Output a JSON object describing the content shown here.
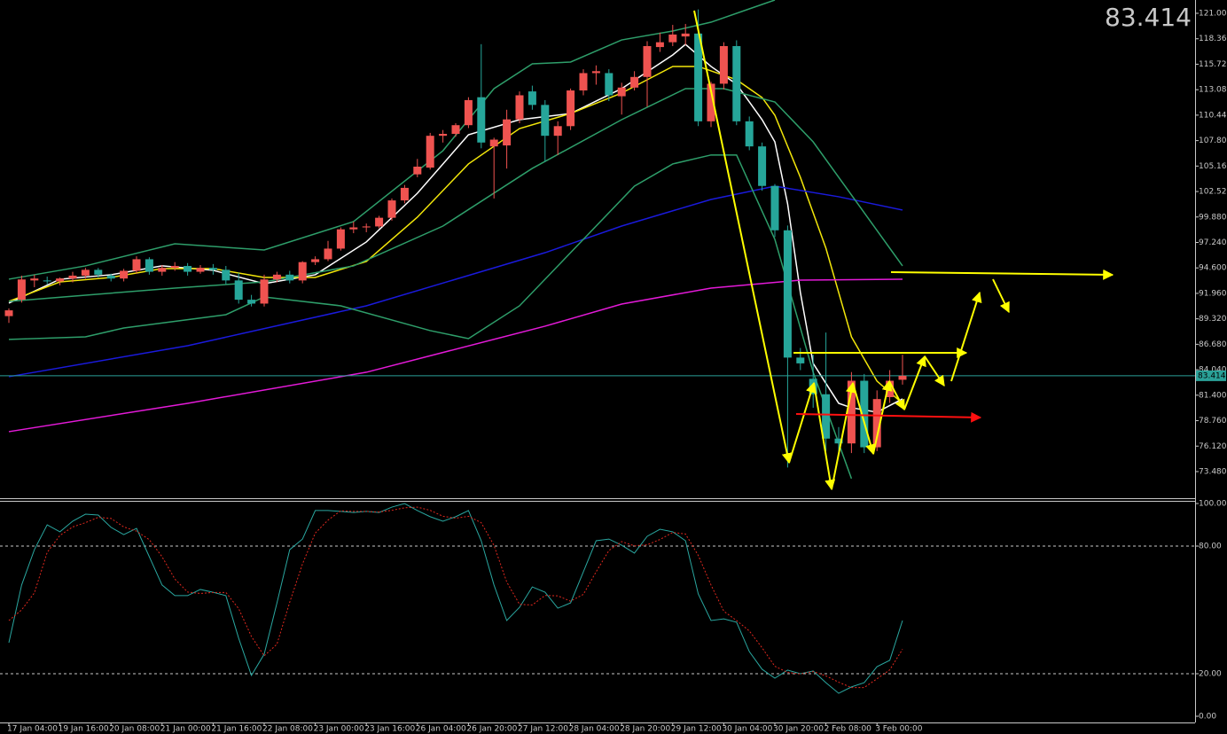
{
  "chart_data": [
    {
      "type": "candlestick",
      "categories": [
        "17 Jan 04:00",
        null,
        null,
        null,
        "19 Jan 16:00",
        null,
        null,
        null,
        "20 Jan 08:00",
        null,
        null,
        null,
        "21 Jan 00:00",
        null,
        null,
        null,
        "21 Jan 16:00",
        null,
        null,
        null,
        "22 Jan 08:00",
        null,
        null,
        null,
        "23 Jan 00:00",
        null,
        null,
        null,
        "23 Jan 16:00",
        null,
        null,
        null,
        "26 Jan 04:00",
        null,
        null,
        null,
        "26 Jan 20:00",
        null,
        null,
        null,
        "27 Jan 12:00",
        null,
        null,
        null,
        "28 Jan 04:00",
        null,
        null,
        null,
        "28 Jan 20:00",
        null,
        null,
        null,
        "29 Jan 12:00",
        null,
        null,
        null,
        "30 Jan 04:00",
        null,
        null,
        null,
        "30 Jan 20:00",
        null,
        null,
        null,
        "2 Feb 08:00",
        null,
        null,
        null,
        "3 Feb 00:00",
        null,
        null
      ],
      "open": [
        89.6,
        91.3,
        93.3,
        93.3,
        93.2,
        93.5,
        93.8,
        94.4,
        93.8,
        93.5,
        94.3,
        95.5,
        94.2,
        94.6,
        94.8,
        94.2,
        94.6,
        94.4,
        93.3,
        91.3,
        90.9,
        93.4,
        93.9,
        93.3,
        95.2,
        95.5,
        96.6,
        98.6,
        98.8,
        98.9,
        99.8,
        101.6,
        104.3,
        105.0,
        108.3,
        108.5,
        109.4,
        112.3,
        107.2,
        107.3,
        110.0,
        112.9,
        111.5,
        108.3,
        109.3,
        113.0,
        114.8,
        114.8,
        112.4,
        113.3,
        114.4,
        117.5,
        118.0,
        118.6,
        118.9,
        109.8,
        113.7,
        117.6,
        109.8,
        107.2,
        103.1,
        98.5,
        85.3,
        83.1,
        81.5,
        76.9,
        76.4,
        82.9,
        76.0,
        81.2,
        83.0
      ],
      "high": [
        90.4,
        93.8,
        93.9,
        93.7,
        93.6,
        94.2,
        94.6,
        94.6,
        94.0,
        94.5,
        95.8,
        95.7,
        94.9,
        95.2,
        95.1,
        94.9,
        95.0,
        94.8,
        94.1,
        91.8,
        93.9,
        94.2,
        94.3,
        95.3,
        95.8,
        97.4,
        98.8,
        99.4,
        99.2,
        100.0,
        101.8,
        103.2,
        105.9,
        108.6,
        108.9,
        109.6,
        112.3,
        117.8,
        108.1,
        111.0,
        112.9,
        113.5,
        112.0,
        109.8,
        113.2,
        115.2,
        115.6,
        115.2,
        113.8,
        115.0,
        118.1,
        119.0,
        119.8,
        119.9,
        121.4,
        113.9,
        118.0,
        118.2,
        110.3,
        107.6,
        103.3,
        99.0,
        86.3,
        85.6,
        87.9,
        78.1,
        83.8,
        83.6,
        81.9,
        84.0,
        85.6
      ],
      "low": [
        88.9,
        91.0,
        92.6,
        92.9,
        92.8,
        93.1,
        93.5,
        93.6,
        93.2,
        93.2,
        94.0,
        93.9,
        93.8,
        94.3,
        93.8,
        94.0,
        93.9,
        92.9,
        90.9,
        90.6,
        90.6,
        93.1,
        93.0,
        93.0,
        94.9,
        95.3,
        96.4,
        98.2,
        98.3,
        98.7,
        99.5,
        101.3,
        104.0,
        104.8,
        107.6,
        108.2,
        109.1,
        107.0,
        101.8,
        104.9,
        109.6,
        111.0,
        105.6,
        106.3,
        108.9,
        112.5,
        113.6,
        111.9,
        110.5,
        113.0,
        111.3,
        117.0,
        117.6,
        117.7,
        109.3,
        109.2,
        113.1,
        109.4,
        106.8,
        102.6,
        97.8,
        73.9,
        84.0,
        80.1,
        75.6,
        75.5,
        75.4,
        75.4,
        75.6,
        80.6,
        82.5
      ],
      "close": [
        90.2,
        93.4,
        93.5,
        93.2,
        93.5,
        93.8,
        94.4,
        93.9,
        93.5,
        94.3,
        95.5,
        94.2,
        94.6,
        94.8,
        94.2,
        94.6,
        94.4,
        93.3,
        91.3,
        90.9,
        93.4,
        93.9,
        93.3,
        95.2,
        95.5,
        96.6,
        98.6,
        98.8,
        98.9,
        99.8,
        101.6,
        102.9,
        105.1,
        108.3,
        108.5,
        109.4,
        112.0,
        107.6,
        107.9,
        110.0,
        112.5,
        111.5,
        108.3,
        109.3,
        113.0,
        114.8,
        115.0,
        112.5,
        113.3,
        114.4,
        117.6,
        118.0,
        118.8,
        118.9,
        109.8,
        113.7,
        117.6,
        109.8,
        107.2,
        103.1,
        98.5,
        85.3,
        84.7,
        81.5,
        76.9,
        76.4,
        82.9,
        76.0,
        81.0,
        82.9,
        83.414
      ],
      "up_color": "#ef5350",
      "down_color": "#26a69a",
      "lines": [
        {
          "color": "#ffffff",
          "x": [
            0,
            4,
            8,
            12,
            16,
            20,
            24,
            28,
            32,
            36,
            40,
            44,
            48,
            52,
            53,
            55,
            57,
            59,
            60,
            61,
            62,
            63,
            65,
            66,
            68,
            70
          ],
          "values": [
            90.95,
            93.43,
            93.89,
            94.81,
            94.35,
            92.97,
            93.89,
            97.29,
            102.34,
            108.41,
            109.97,
            110.61,
            113.19,
            116.68,
            117.78,
            115.49,
            113.65,
            109.97,
            107.67,
            101.24,
            92.05,
            84.7,
            80.56,
            80.1,
            79.64,
            81.02
          ]
        },
        {
          "color": "#f2e60a",
          "x": [
            0,
            4,
            8,
            12,
            16,
            20,
            24,
            28,
            32,
            36,
            40,
            44,
            48,
            52,
            54,
            57,
            59,
            60,
            62,
            64,
            66,
            68,
            70
          ],
          "values": [
            91.13,
            93.15,
            93.61,
            94.53,
            94.53,
            93.61,
            93.61,
            95.27,
            99.86,
            105.38,
            109.05,
            110.61,
            112.73,
            115.49,
            115.49,
            114.11,
            112.27,
            110.43,
            103.99,
            96.64,
            87.45,
            82.86,
            80.56
          ]
        },
        {
          "color": "#1a1adc",
          "x": [
            0,
            14,
            28,
            42,
            48,
            55,
            60,
            65,
            70
          ],
          "values": [
            83.32,
            86.53,
            90.67,
            96.18,
            98.94,
            101.7,
            103.08,
            101.98,
            100.6
          ]
        },
        {
          "color": "#e41ad8",
          "x": [
            0,
            14,
            28,
            42,
            48,
            55,
            62,
            70
          ],
          "values": [
            77.62,
            80.56,
            83.78,
            88.56,
            90.85,
            92.51,
            93.33,
            93.43
          ]
        },
        {
          "color": "#2e9e6a",
          "x": [
            0,
            6,
            13,
            20,
            27,
            34,
            38,
            41,
            44,
            48,
            52,
            55,
            58,
            60
          ],
          "values": [
            93.43,
            94.81,
            97.1,
            96.46,
            99.4,
            106.75,
            113.19,
            115.76,
            115.95,
            118.24,
            119.16,
            120.08,
            121.46,
            122.38
          ]
        },
        {
          "color": "#2e9e6a",
          "x": [
            0,
            6,
            13,
            20,
            27,
            34,
            41,
            48,
            53,
            56,
            60,
            63,
            66,
            70
          ],
          "values": [
            91.13,
            91.77,
            92.51,
            93.15,
            94.81,
            98.94,
            104.92,
            109.97,
            113.19,
            113.19,
            111.81,
            107.67,
            102.16,
            94.81
          ]
        },
        {
          "color": "#2e9e6a",
          "x": [
            0,
            6,
            9,
            17,
            20,
            26,
            33,
            36,
            40,
            45,
            49,
            52,
            55,
            57,
            60,
            63,
            66
          ],
          "values": [
            87.18,
            87.45,
            88.37,
            89.75,
            91.59,
            90.67,
            88.1,
            87.27,
            90.67,
            97.56,
            103.08,
            105.38,
            106.31,
            106.31,
            97.56,
            83.78,
            72.75
          ]
        }
      ],
      "ylim": [
        70.72,
        122.38
      ],
      "yticks": [
        {
          "value": 121,
          "label": "121.00"
        },
        {
          "value": 118.36,
          "label": "118.360"
        },
        {
          "value": 115.72,
          "label": "115.720"
        },
        {
          "value": 113.08,
          "label": "113.080"
        },
        {
          "value": 110.44,
          "label": "110.440"
        },
        {
          "value": 107.8,
          "label": "107.800"
        },
        {
          "value": 105.16,
          "label": "105.160"
        },
        {
          "value": 102.52,
          "label": "102.520"
        },
        {
          "value": 99.88,
          "label": "99.880"
        },
        {
          "value": 97.24,
          "label": "97.240"
        },
        {
          "value": 94.6,
          "label": "94.600"
        },
        {
          "value": 91.96,
          "label": "91.960"
        },
        {
          "value": 89.32,
          "label": "89.320"
        },
        {
          "value": 86.68,
          "label": "86.680"
        },
        {
          "value": 84.04,
          "label": "84.040"
        },
        {
          "value": 81.4,
          "label": "81.400"
        },
        {
          "value": 78.76,
          "label": "78.760"
        },
        {
          "value": 76.12,
          "label": "76.120"
        },
        {
          "value": 73.48,
          "label": "73.480"
        }
      ],
      "last_price": 83.414,
      "last_price_color": "#ff0000",
      "last_line_color": "#2aa198"
    },
    {
      "type": "line",
      "series": [
        {
          "color": "#2aa7a0",
          "values": [
            34.6,
            61.7,
            78.3,
            90,
            86.7,
            91.7,
            95,
            94.6,
            88.8,
            85.4,
            88.3,
            75,
            61.7,
            56.7,
            56.7,
            59.6,
            58.3,
            56.7,
            36.7,
            19.2,
            29.2,
            53.3,
            78.3,
            83.3,
            96.7,
            96.7,
            96.3,
            95.8,
            96.3,
            95.8,
            98.3,
            100,
            96.7,
            93.8,
            91.7,
            93.8,
            96.7,
            82.5,
            61.7,
            45,
            51.2,
            60.8,
            58.3,
            50.8,
            53.3,
            67.9,
            82.5,
            83.3,
            80.4,
            76.7,
            84.6,
            87.9,
            86.7,
            82.5,
            57.5,
            45,
            45.8,
            44.2,
            30.4,
            22.1,
            17.9,
            21.7,
            20,
            21.3,
            15.8,
            10.8,
            13.8,
            15.8,
            23.3,
            26.3,
            45
          ]
        },
        {
          "color": "#e0281e",
          "dashed": true,
          "values": [
            45,
            50,
            58,
            77,
            85,
            89,
            91,
            93.5,
            93,
            89,
            87,
            83,
            75,
            64.5,
            58.4,
            57.7,
            58.2,
            58.2,
            50.6,
            37.5,
            28.4,
            33.9,
            53.6,
            71.6,
            86.1,
            92.2,
            96.6,
            96.3,
            96.3,
            96,
            96.8,
            98,
            98.3,
            96.8,
            94,
            93.1,
            94,
            91,
            80.3,
            63.1,
            52.6,
            52.3,
            56.8,
            56.6,
            54.1,
            57.3,
            67.9,
            77.9,
            82.1,
            80.1,
            80.6,
            83.1,
            86.4,
            85.7,
            75.6,
            61.7,
            49.4,
            45,
            40.1,
            32.2,
            23.5,
            20.6,
            19.9,
            21,
            19,
            16,
            13.5,
            13.5,
            17.6,
            21.8,
            31.5
          ]
        }
      ],
      "ylim": [
        0,
        100
      ],
      "yticks": [
        {
          "value": 100,
          "label": "100.00"
        },
        {
          "value": 80,
          "label": "80.00"
        },
        {
          "value": 20,
          "label": "20.00"
        },
        {
          "value": 0,
          "label": "0.00"
        }
      ],
      "levels": [
        80,
        20
      ]
    }
  ]
}
